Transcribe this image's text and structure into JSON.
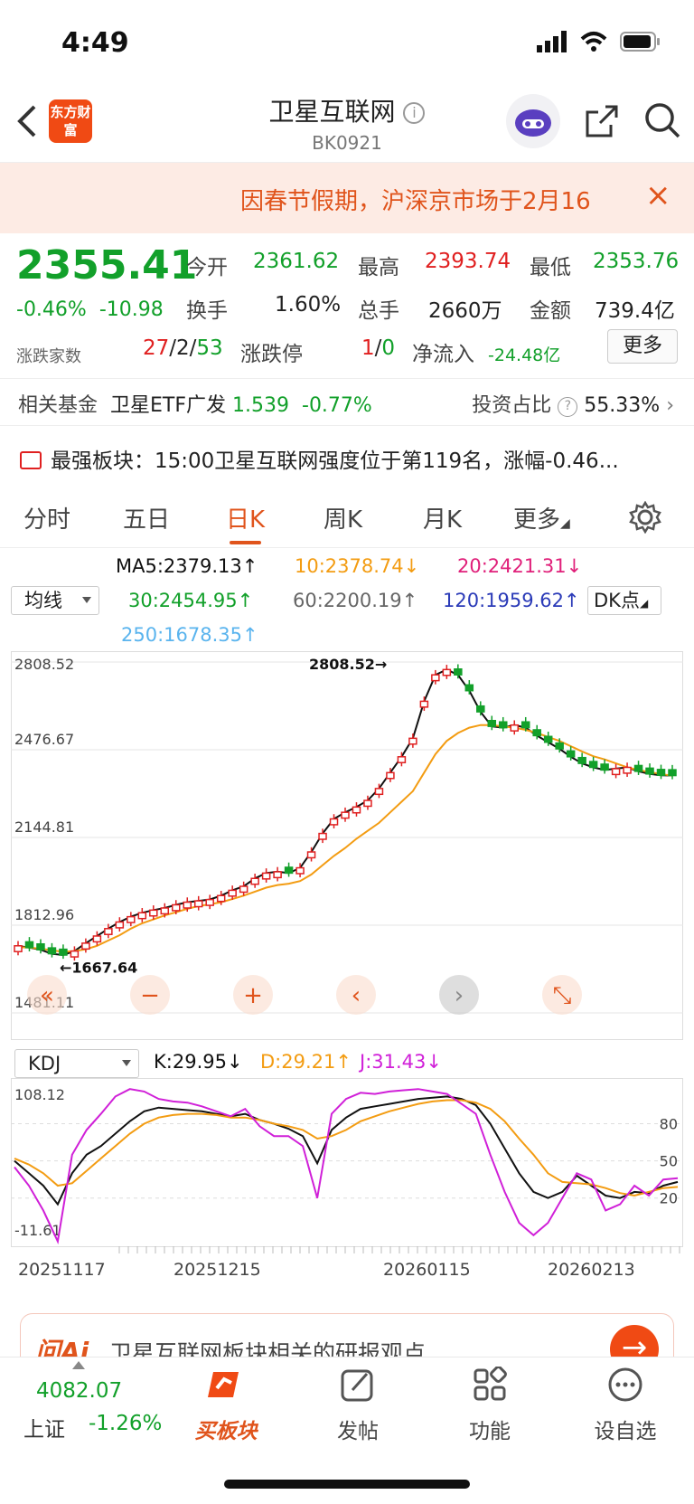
{
  "status": {
    "time": "4:49"
  },
  "header": {
    "logo_text": "东方财富",
    "title": "卫星互联网",
    "code": "BK0921"
  },
  "notice": {
    "text": "因春节假期，沪深京市场于2月16"
  },
  "quote": {
    "price": "2355.41",
    "change_pct": "-0.46%",
    "change": "-10.98",
    "open_label": "今开",
    "open": "2361.62",
    "high_label": "最高",
    "high": "2393.74",
    "low_label": "最低",
    "low": "2353.76",
    "turnover_label": "换手",
    "turnover": "1.60%",
    "volume_label": "总手",
    "volume": "2660万",
    "amount_label": "金额",
    "amount": "739.4亿",
    "breadth_label": "涨跌家数",
    "up": "27",
    "flat": "2",
    "down": "53",
    "limit_label": "涨跌停",
    "limit_up": "1",
    "limit_down": "0",
    "inflow_label": "净流入",
    "inflow": "-24.48亿",
    "more_label": "更多"
  },
  "fund": {
    "label": "相关基金",
    "name": "卫星ETF广发",
    "price": "1.539",
    "pct": "-0.77%",
    "ratio_label": "投资占比",
    "ratio": "55.33%"
  },
  "strong": {
    "text": "最强板块：15:00卫星互联网强度位于第119名，涨幅-0.46..."
  },
  "tabs": [
    {
      "label": "分时"
    },
    {
      "label": "五日"
    },
    {
      "label": "日K"
    },
    {
      "label": "周K"
    },
    {
      "label": "月K"
    },
    {
      "label": "更多"
    }
  ],
  "ma": {
    "select": "均线",
    "ma5": "MA5:2379.13↑",
    "ma10": "10:2378.74↓",
    "ma20": "20:2421.31↓",
    "ma30": "30:2454.95↑",
    "ma60": "60:2200.19↑",
    "ma120": "120:1959.62↑",
    "ma250": "250:1678.35↑",
    "dk": "DK点",
    "colors": {
      "ma5": "#111111",
      "ma10": "#f39c12",
      "ma20": "#e0207a",
      "ma30": "#12a02a",
      "ma60": "#666666",
      "ma120": "#2b3bb8",
      "ma250": "#5ab4ee"
    }
  },
  "chart_data": [
    {
      "type": "candlestick",
      "y_ticks": [
        "2808.52",
        "2476.67",
        "2144.81",
        "1812.96",
        "1481.11"
      ],
      "ylim": [
        1481.11,
        2808.52
      ],
      "annotations": [
        {
          "label": "2808.52",
          "value": 2808.52
        },
        {
          "label": "1667.64",
          "value": 1667.64
        }
      ],
      "series": [
        {
          "name": "MA5",
          "values": [
            1735,
            1728,
            1720,
            1705,
            1700,
            1715,
            1745,
            1772,
            1800,
            1825,
            1845,
            1860,
            1870,
            1878,
            1890,
            1900,
            1905,
            1910,
            1925,
            1945,
            1960,
            1990,
            2010,
            2015,
            2010,
            2030,
            2090,
            2160,
            2215,
            2240,
            2260,
            2285,
            2330,
            2390,
            2450,
            2520,
            2660,
            2760,
            2780,
            2760,
            2700,
            2620,
            2565,
            2560,
            2570,
            2560,
            2530,
            2505,
            2480,
            2450,
            2425,
            2410,
            2400,
            2405,
            2410,
            2395,
            2385,
            2380,
            2379
          ]
        },
        {
          "name": "10",
          "values": [
            1730,
            1728,
            1724,
            1718,
            1712,
            1715,
            1722,
            1735,
            1755,
            1775,
            1800,
            1820,
            1835,
            1850,
            1862,
            1875,
            1885,
            1892,
            1900,
            1912,
            1925,
            1940,
            1955,
            1965,
            1970,
            1980,
            2005,
            2040,
            2075,
            2105,
            2140,
            2170,
            2200,
            2240,
            2280,
            2320,
            2390,
            2460,
            2510,
            2540,
            2560,
            2570,
            2570,
            2565,
            2560,
            2552,
            2540,
            2525,
            2510,
            2490,
            2470,
            2452,
            2440,
            2425,
            2410,
            2400,
            2392,
            2385,
            2378
          ]
        }
      ]
    },
    {
      "type": "line",
      "indicator": "KDJ",
      "y_ticks": [
        "108.12",
        "-11.61"
      ],
      "right_ticks": [
        "80",
        "50",
        "20"
      ],
      "ylim": [
        -11.61,
        108.12
      ],
      "x_labels": [
        "20251117",
        "20251215",
        "20260115",
        "20260213"
      ],
      "series": [
        {
          "name": "K:29.95↓",
          "values": [
            50,
            40,
            30,
            15,
            40,
            55,
            62,
            72,
            82,
            90,
            93,
            92,
            91,
            90,
            88,
            86,
            88,
            83,
            80,
            76,
            70,
            48,
            75,
            85,
            92,
            94,
            96,
            98,
            100,
            101,
            102,
            100,
            95,
            80,
            60,
            40,
            25,
            20,
            25,
            38,
            30,
            22,
            20,
            25,
            24,
            30,
            33
          ]
        },
        {
          "name": "D:29.21↑",
          "values": [
            52,
            47,
            40,
            30,
            32,
            42,
            52,
            62,
            72,
            80,
            85,
            87,
            88,
            88,
            87,
            85,
            85,
            83,
            80,
            78,
            75,
            68,
            70,
            75,
            82,
            86,
            90,
            93,
            96,
            98,
            99,
            99,
            97,
            92,
            82,
            68,
            55,
            40,
            33,
            32,
            31,
            28,
            24,
            22,
            25,
            28,
            29
          ]
        },
        {
          "name": "J:31.43↓",
          "values": [
            45,
            30,
            10,
            -15,
            55,
            75,
            88,
            102,
            108,
            106,
            100,
            98,
            97,
            94,
            90,
            86,
            92,
            78,
            70,
            70,
            62,
            20,
            88,
            100,
            105,
            104,
            106,
            107,
            108,
            106,
            104,
            96,
            88,
            55,
            25,
            0,
            -10,
            0,
            20,
            40,
            35,
            10,
            15,
            30,
            22,
            35,
            36
          ]
        }
      ]
    }
  ],
  "chart_labels": {
    "kdj_select": "KDJ",
    "k": "K:29.95↓",
    "d": "D:29.21↑",
    "j": "J:31.43↓"
  },
  "ai": {
    "brand": "问Ai",
    "text": "卫星互联网板块相关的研报观点"
  },
  "bottom": {
    "index_value": "4082.07",
    "index_name": "上证",
    "index_pct": "-1.26%",
    "nav": [
      {
        "label": "买板块"
      },
      {
        "label": "发帖"
      },
      {
        "label": "功能"
      },
      {
        "label": "设自选"
      }
    ]
  }
}
